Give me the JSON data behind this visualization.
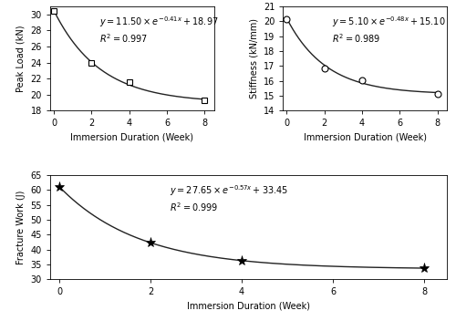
{
  "plot1": {
    "x_data": [
      0,
      2,
      4,
      8
    ],
    "y_data": [
      30.4,
      23.9,
      21.5,
      19.3
    ],
    "a": 11.5,
    "b": -0.41,
    "c": 18.97,
    "eq_line1": "$y = 11.50\\times e^{-0.41x} +18.97$",
    "eq_line2": "$R^2 = 0.997$",
    "ylabel": "Peak Load (kN)",
    "xlabel": "Immersion Duration (Week)",
    "ylim": [
      18,
      31
    ],
    "yticks": [
      18,
      20,
      22,
      24,
      26,
      28,
      30
    ],
    "xlim": [
      -0.2,
      8.5
    ],
    "xticks": [
      0,
      2,
      4,
      6,
      8
    ],
    "marker": "s"
  },
  "plot2": {
    "x_data": [
      0,
      2,
      4,
      8
    ],
    "y_data": [
      20.15,
      16.85,
      16.05,
      15.1
    ],
    "a": 5.1,
    "b": -0.48,
    "c": 15.1,
    "eq_line1": "$y = 5.10\\times e^{-0.48x} +15.10$",
    "eq_line2": "$R^2 = 0.989$",
    "ylabel": "Stiffness (kN/mm)",
    "xlabel": "Immersion Duration (Week)",
    "ylim": [
      14,
      21
    ],
    "yticks": [
      14,
      15,
      16,
      17,
      18,
      19,
      20,
      21
    ],
    "xlim": [
      -0.2,
      8.5
    ],
    "xticks": [
      0,
      2,
      4,
      6,
      8
    ],
    "marker": "o"
  },
  "plot3": {
    "x_data": [
      0,
      2,
      4,
      8
    ],
    "y_data": [
      61.1,
      42.2,
      36.1,
      33.9
    ],
    "a": 27.65,
    "b": -0.57,
    "c": 33.45,
    "eq_line1": "$y = 27.65\\times e^{-0.57x} +33.45$",
    "eq_line2": "$R^2 = 0.999$",
    "ylabel": "Fracture Work (J)",
    "xlabel": "Immersion Duration (Week)",
    "ylim": [
      30,
      65
    ],
    "yticks": [
      30,
      35,
      40,
      45,
      50,
      55,
      60,
      65
    ],
    "xlim": [
      -0.2,
      8.5
    ],
    "xticks": [
      0,
      2,
      4,
      6,
      8
    ],
    "marker": "*"
  },
  "line_color": "#222222",
  "marker_color": "black",
  "marker_facecolor": "white",
  "marker_size": 5,
  "star_size": 8,
  "font_size": 7,
  "eq_fontsize": 7,
  "figsize": [
    5.0,
    3.52
  ],
  "dpi": 100
}
